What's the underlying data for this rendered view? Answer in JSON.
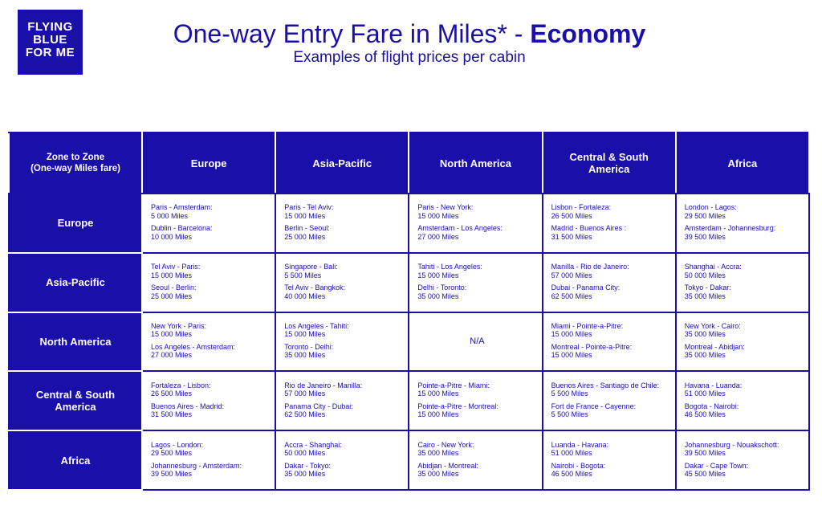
{
  "logo": [
    "FLYING",
    "BLUE",
    "FOR ME"
  ],
  "header": {
    "title_main": "One-way Entry Fare in Miles* - ",
    "title_emphasis": "Economy",
    "subtitle": "Examples of flight prices per cabin"
  },
  "table": {
    "corner": [
      "Zone to Zone",
      "(One-way Miles fare)"
    ],
    "columns": [
      "Europe",
      "Asia-Pacific",
      "North America",
      "Central & South America",
      "Africa"
    ],
    "rows": [
      {
        "zone": "Europe",
        "cells": [
          [
            {
              "route": "Paris - Amsterdam:",
              "miles": "5 000 Miles"
            },
            {
              "route": "Dublin - Barcelona:",
              "miles": "10 000 Miles"
            }
          ],
          [
            {
              "route": "Paris - Tel Aviv:",
              "miles": "15 000 Miles"
            },
            {
              "route": "Berlin - Seoul:",
              "miles": "25 000 Miles"
            }
          ],
          [
            {
              "route": "Paris - New York:",
              "miles": "15 000 Miles"
            },
            {
              "route": "Amsterdam - Los Angeles:",
              "miles": "27 000 Miles"
            }
          ],
          [
            {
              "route": "Lisbon - Fortaleza:",
              "miles": "26 500 Miles"
            },
            {
              "route": "Madrid - Buenos Aires :",
              "miles": "31 500 Miles"
            }
          ],
          [
            {
              "route": "London - Lagos:",
              "miles": "29 500 Miles"
            },
            {
              "route": "Amsterdam - Johannesburg:",
              "miles": "39 500 Miles"
            }
          ]
        ]
      },
      {
        "zone": "Asia-Pacific",
        "cells": [
          [
            {
              "route": "Tel Aviv - Paris:",
              "miles": "15 000 Miles"
            },
            {
              "route": "Seoul - Berlin:",
              "miles": "25 000 Miles"
            }
          ],
          [
            {
              "route": "Singapore - Bali:",
              "miles": "5 500 Miles"
            },
            {
              "route": "Tel Aviv - Bangkok:",
              "miles": "40 000 Miles"
            }
          ],
          [
            {
              "route": "Tahiti - Los Angeles:",
              "miles": "15 000 Miles"
            },
            {
              "route": "Delhi - Toronto:",
              "miles": "35 000 Miles"
            }
          ],
          [
            {
              "route": "Manilla - Rio de Janeiro:",
              "miles": "57 000 Miles"
            },
            {
              "route": "Dubai - Panama City:",
              "miles": "62 500 Miles"
            }
          ],
          [
            {
              "route": "Shanghai - Accra:",
              "miles": "50 000 Miles"
            },
            {
              "route": "Tokyo - Dakar:",
              "miles": "35 000 Miles"
            }
          ]
        ]
      },
      {
        "zone": "North America",
        "cells": [
          [
            {
              "route": "New York - Paris:",
              "miles": "15 000 Miles"
            },
            {
              "route": "Los Angeles - Amsterdam:",
              "miles": "27 000 Miles"
            }
          ],
          [
            {
              "route": "Los Angeles - Tahiti:",
              "miles": "15 000 Miles"
            },
            {
              "route": "Toronto - Delhi:",
              "miles": "35 000 Miles"
            }
          ],
          "N/A",
          [
            {
              "route": "Miami - Pointe-a-Pitre:",
              "miles": "15 000 Miles"
            },
            {
              "route": "Montreal - Pointe-a-Pitre:",
              "miles": "15 000 Miles"
            }
          ],
          [
            {
              "route": "New York - Cairo:",
              "miles": "35 000 Miles"
            },
            {
              "route": "Montreal - Abidjan:",
              "miles": "35 000 Miles"
            }
          ]
        ]
      },
      {
        "zone": "Central & South America",
        "cells": [
          [
            {
              "route": "Fortaleza - Lisbon:",
              "miles": "26 500 Miles"
            },
            {
              "route": "Buenos Aires - Madrid:",
              "miles": "31 500 Miles"
            }
          ],
          [
            {
              "route": "Rio de Janeiro - Manilla:",
              "miles": "57 000 Miles"
            },
            {
              "route": "Panama City - Dubai:",
              "miles": "62 500 Miles"
            }
          ],
          [
            {
              "route": "Pointe-a-Pitre - Miami:",
              "miles": "15 000 Miles"
            },
            {
              "route": "Pointe-a-Pitre - Montreal:",
              "miles": "15 000 Miles"
            }
          ],
          [
            {
              "route": "Buenos Aires - Santiago de Chile:",
              "miles": "5 500 Miles"
            },
            {
              "route": "Fort de France - Cayenne:",
              "miles": "5 500 Miles"
            }
          ],
          [
            {
              "route": "Havana - Luanda:",
              "miles": "51 000 Miles"
            },
            {
              "route": "Bogota - Nairobi:",
              "miles": "46 500 Miles"
            }
          ]
        ]
      },
      {
        "zone": "Africa",
        "cells": [
          [
            {
              "route": "Lagos - London:",
              "miles": "29 500 Miles"
            },
            {
              "route": "Johannesburg - Amsterdam:",
              "miles": "39 500 Miles"
            }
          ],
          [
            {
              "route": "Accra - Shanghai:",
              "miles": "50 000 Miles"
            },
            {
              "route": "Dakar - Tokyo:",
              "miles": "35 000 Miles"
            }
          ],
          [
            {
              "route": "Cairo - New York:",
              "miles": "35 000 Miles"
            },
            {
              "route": "Abidjan - Montreal:",
              "miles": "35 000 Miles"
            }
          ],
          [
            {
              "route": "Luanda - Havana:",
              "miles": "51 000 Miles"
            },
            {
              "route": "Nairobi - Bogota:",
              "miles": "46 500 Miles"
            }
          ],
          [
            {
              "route": "Johannesburg - Nouakschott:",
              "miles": "39 500 Miles"
            },
            {
              "route": "Dakar - Cape Town:",
              "miles": "45 500 Miles"
            }
          ]
        ]
      }
    ]
  }
}
